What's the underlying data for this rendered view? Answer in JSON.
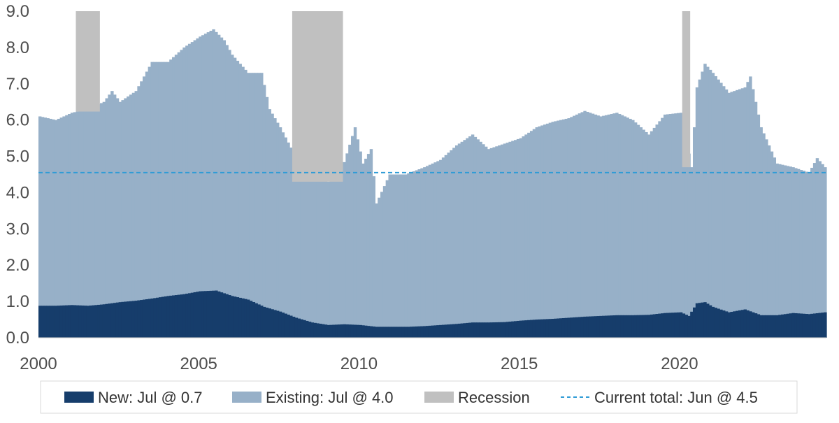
{
  "chart_data": {
    "type": "area",
    "stacked": true,
    "x_range": [
      "2000-01",
      "2024-07"
    ],
    "ylim": [
      0,
      9
    ],
    "y_ticks": [
      "0.0",
      "1.0",
      "2.0",
      "3.0",
      "4.0",
      "5.0",
      "6.0",
      "7.0",
      "8.0",
      "9.0"
    ],
    "x_ticks": [
      {
        "label": "2000",
        "date": "2000-01"
      },
      {
        "label": "2005",
        "date": "2005-01"
      },
      {
        "label": "2010",
        "date": "2010-01"
      },
      {
        "label": "2015",
        "date": "2015-01"
      },
      {
        "label": "2020",
        "date": "2020-01"
      }
    ],
    "grid": false,
    "legend_position": "bottom",
    "legend": [
      {
        "key": "new",
        "label": "New: Jul @ 0.7"
      },
      {
        "key": "existing",
        "label": "Existing: Jul @ 4.0"
      },
      {
        "key": "recession",
        "label": "Recession"
      },
      {
        "key": "current",
        "label": "Current total: Jun @ 4.5"
      }
    ],
    "colors": {
      "new": "#163d6b",
      "existing": "#97b0c8",
      "recession": "#c0c0c0",
      "current": "#2e9bd6"
    },
    "recessions": [
      {
        "start": "2001-03",
        "end": "2001-11"
      },
      {
        "start": "2007-12",
        "end": "2009-06"
      },
      {
        "start": "2020-02",
        "end": "2020-04"
      }
    ],
    "current_total": 4.55,
    "series": [
      {
        "name": "New: Jul @ 0.7",
        "key": "new",
        "points": [
          [
            "2000-01",
            0.88
          ],
          [
            "2000-07",
            0.88
          ],
          [
            "2001-01",
            0.9
          ],
          [
            "2001-07",
            0.88
          ],
          [
            "2002-01",
            0.92
          ],
          [
            "2002-07",
            0.98
          ],
          [
            "2003-01",
            1.02
          ],
          [
            "2003-07",
            1.08
          ],
          [
            "2004-01",
            1.15
          ],
          [
            "2004-07",
            1.2
          ],
          [
            "2005-01",
            1.28
          ],
          [
            "2005-07",
            1.3
          ],
          [
            "2006-01",
            1.15
          ],
          [
            "2006-07",
            1.05
          ],
          [
            "2007-01",
            0.85
          ],
          [
            "2007-07",
            0.72
          ],
          [
            "2008-01",
            0.55
          ],
          [
            "2008-07",
            0.42
          ],
          [
            "2009-01",
            0.35
          ],
          [
            "2009-07",
            0.37
          ],
          [
            "2010-01",
            0.35
          ],
          [
            "2010-07",
            0.3
          ],
          [
            "2011-01",
            0.3
          ],
          [
            "2011-07",
            0.3
          ],
          [
            "2012-01",
            0.32
          ],
          [
            "2012-07",
            0.35
          ],
          [
            "2013-01",
            0.38
          ],
          [
            "2013-07",
            0.42
          ],
          [
            "2014-01",
            0.42
          ],
          [
            "2014-07",
            0.43
          ],
          [
            "2015-01",
            0.47
          ],
          [
            "2015-07",
            0.5
          ],
          [
            "2016-01",
            0.52
          ],
          [
            "2016-07",
            0.55
          ],
          [
            "2017-01",
            0.58
          ],
          [
            "2017-07",
            0.6
          ],
          [
            "2018-01",
            0.62
          ],
          [
            "2018-07",
            0.62
          ],
          [
            "2019-01",
            0.63
          ],
          [
            "2019-07",
            0.68
          ],
          [
            "2020-01",
            0.7
          ],
          [
            "2020-04",
            0.6
          ],
          [
            "2020-07",
            0.95
          ],
          [
            "2020-10",
            0.98
          ],
          [
            "2021-01",
            0.85
          ],
          [
            "2021-07",
            0.7
          ],
          [
            "2022-01",
            0.78
          ],
          [
            "2022-07",
            0.62
          ],
          [
            "2023-01",
            0.62
          ],
          [
            "2023-07",
            0.68
          ],
          [
            "2024-01",
            0.65
          ],
          [
            "2024-07",
            0.7
          ]
        ]
      },
      {
        "name": "Existing: Jul @ 4.0",
        "key": "existing",
        "points": [
          [
            "2000-01",
            6.1
          ],
          [
            "2000-07",
            6.0
          ],
          [
            "2001-01",
            6.2
          ],
          [
            "2001-07",
            6.3
          ],
          [
            "2002-01",
            6.5
          ],
          [
            "2002-04",
            6.8
          ],
          [
            "2002-07",
            6.5
          ],
          [
            "2003-01",
            6.8
          ],
          [
            "2003-07",
            7.6
          ],
          [
            "2004-01",
            7.6
          ],
          [
            "2004-07",
            8.0
          ],
          [
            "2005-01",
            8.3
          ],
          [
            "2005-06",
            8.5
          ],
          [
            "2005-10",
            8.2
          ],
          [
            "2006-01",
            7.8
          ],
          [
            "2006-07",
            7.3
          ],
          [
            "2006-12",
            7.3
          ],
          [
            "2007-03",
            6.3
          ],
          [
            "2007-07",
            5.8
          ],
          [
            "2007-12",
            5.1
          ],
          [
            "2008-04",
            4.75
          ],
          [
            "2008-07",
            4.6
          ],
          [
            "2008-10",
            4.35
          ],
          [
            "2009-01",
            4.3
          ],
          [
            "2009-06",
            4.6
          ],
          [
            "2009-11",
            5.8
          ],
          [
            "2010-02",
            4.8
          ],
          [
            "2010-05",
            5.2
          ],
          [
            "2010-07",
            3.7
          ],
          [
            "2010-12",
            4.5
          ],
          [
            "2011-06",
            4.5
          ],
          [
            "2012-01",
            4.7
          ],
          [
            "2012-07",
            4.9
          ],
          [
            "2013-01",
            5.3
          ],
          [
            "2013-07",
            5.6
          ],
          [
            "2014-01",
            5.2
          ],
          [
            "2014-07",
            5.35
          ],
          [
            "2015-01",
            5.5
          ],
          [
            "2015-07",
            5.8
          ],
          [
            "2016-01",
            5.95
          ],
          [
            "2016-07",
            6.05
          ],
          [
            "2017-01",
            6.25
          ],
          [
            "2017-07",
            6.1
          ],
          [
            "2018-01",
            6.2
          ],
          [
            "2018-07",
            6.0
          ],
          [
            "2019-01",
            5.6
          ],
          [
            "2019-07",
            6.15
          ],
          [
            "2020-01",
            6.2
          ],
          [
            "2020-05",
            4.7
          ],
          [
            "2020-07",
            6.9
          ],
          [
            "2020-10",
            7.55
          ],
          [
            "2021-01",
            7.3
          ],
          [
            "2021-07",
            6.75
          ],
          [
            "2022-01",
            6.9
          ],
          [
            "2022-03",
            7.2
          ],
          [
            "2022-07",
            5.8
          ],
          [
            "2023-01",
            4.8
          ],
          [
            "2023-07",
            4.7
          ],
          [
            "2024-01",
            4.55
          ],
          [
            "2024-04",
            4.95
          ],
          [
            "2024-07",
            4.7
          ]
        ]
      }
    ]
  }
}
